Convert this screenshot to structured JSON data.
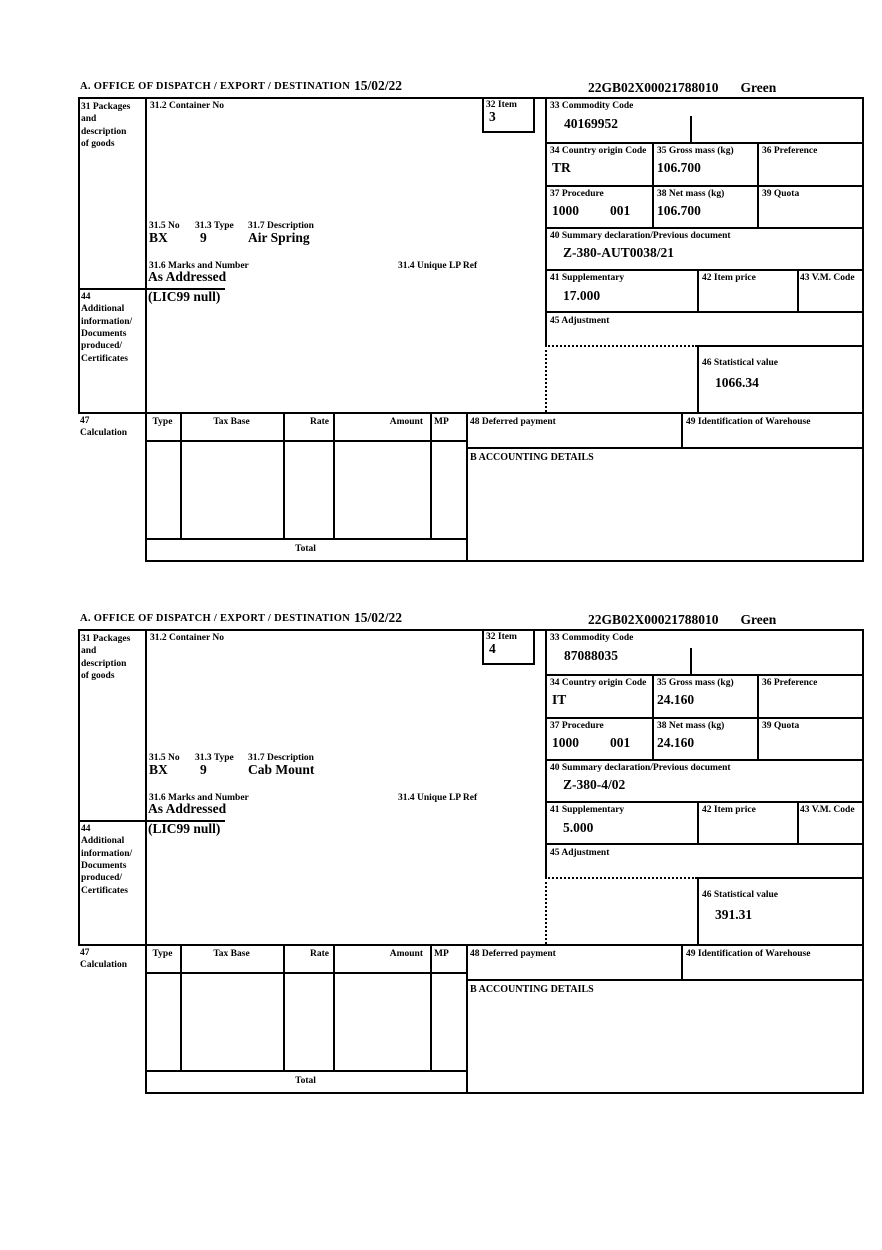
{
  "blocks": [
    {
      "header": {
        "section_label": "A.  OFFICE OF DISPATCH / EXPORT / DESTINATION",
        "date": "15/02/22",
        "reference": "22GB02X00021788010",
        "routing": "Green"
      },
      "labels": {
        "packages": "31 Packages\nand\ndescription\nof goods",
        "container_no": "31.2 Container No",
        "item": "32 Item",
        "commodity_code": "33 Commodity Code",
        "country_origin": "34 Country origin Code",
        "gross_mass": "35 Gross mass (kg)",
        "preference": "36 Preference",
        "procedure": "37 Procedure",
        "net_mass": "38 Net mass (kg)",
        "quota": "39 Quota",
        "summary_declaration": "40 Summary declaration/Previous document",
        "supplementary": "41 Supplementary",
        "item_price": "42 Item price",
        "vm_code": "43 V.M. Code",
        "additional_information": "44\nAdditional\ninformation/\nDocuments\nproduced/\nCertificates",
        "adjustment": "45 Adjustment",
        "statistical_value": "46 Statistical value",
        "package_no": "31.5 No",
        "package_type": "31.3 Type",
        "description": "31.7 Description",
        "marks_and_number": "31.6 Marks and Number",
        "unique_lp_ref": "31.4 Unique LP Ref",
        "calculation": "47\nCalculation",
        "col_type": "Type",
        "col_tax_base": "Tax Base",
        "col_rate": "Rate",
        "col_amount": "Amount",
        "col_mp": "MP",
        "deferred_payment": "48 Deferred payment",
        "warehouse_id": "49 Identification of Warehouse",
        "accounting_details": "B ACCOUNTING DETAILS",
        "total": "Total"
      },
      "values": {
        "item_number": "3",
        "commodity_code": "40169952",
        "country_origin": "TR",
        "gross_mass": "106.700",
        "procedure": "1000",
        "procedure_extra": "001",
        "net_mass": "106.700",
        "summary_declaration": "Z-380-AUT0038/21",
        "supplementary": "17.000",
        "statistical_value": "1066.34",
        "package_no": "BX",
        "package_type": "9",
        "description": "Air Spring",
        "marks_and_number": "As Addressed",
        "additional_information": "(LIC99 null)"
      }
    },
    {
      "header": {
        "section_label": "A.  OFFICE OF DISPATCH / EXPORT / DESTINATION",
        "date": "15/02/22",
        "reference": "22GB02X00021788010",
        "routing": "Green"
      },
      "labels": {
        "packages": "31 Packages\nand\ndescription\nof goods",
        "container_no": "31.2 Container No",
        "item": "32 Item",
        "commodity_code": "33 Commodity Code",
        "country_origin": "34 Country origin Code",
        "gross_mass": "35 Gross mass (kg)",
        "preference": "36 Preference",
        "procedure": "37 Procedure",
        "net_mass": "38 Net mass (kg)",
        "quota": "39 Quota",
        "summary_declaration": "40 Summary declaration/Previous document",
        "supplementary": "41 Supplementary",
        "item_price": "42 Item price",
        "vm_code": "43 V.M. Code",
        "additional_information": "44\nAdditional\ninformation/\nDocuments\nproduced/\nCertificates",
        "adjustment": "45 Adjustment",
        "statistical_value": "46 Statistical value",
        "package_no": "31.5 No",
        "package_type": "31.3 Type",
        "description": "31.7 Description",
        "marks_and_number": "31.6 Marks and Number",
        "unique_lp_ref": "31.4 Unique LP Ref",
        "calculation": "47\nCalculation",
        "col_type": "Type",
        "col_tax_base": "Tax Base",
        "col_rate": "Rate",
        "col_amount": "Amount",
        "col_mp": "MP",
        "deferred_payment": "48 Deferred payment",
        "warehouse_id": "49 Identification of Warehouse",
        "accounting_details": "B ACCOUNTING DETAILS",
        "total": "Total"
      },
      "values": {
        "item_number": "4",
        "commodity_code": "87088035",
        "country_origin": "IT",
        "gross_mass": "24.160",
        "procedure": "1000",
        "procedure_extra": "001",
        "net_mass": "24.160",
        "summary_declaration": "Z-380-4/02",
        "supplementary": "5.000",
        "statistical_value": "391.31",
        "package_no": "BX",
        "package_type": "9",
        "description": "Cab Mount",
        "marks_and_number": "As Addressed",
        "additional_information": "(LIC99 null)"
      }
    }
  ]
}
